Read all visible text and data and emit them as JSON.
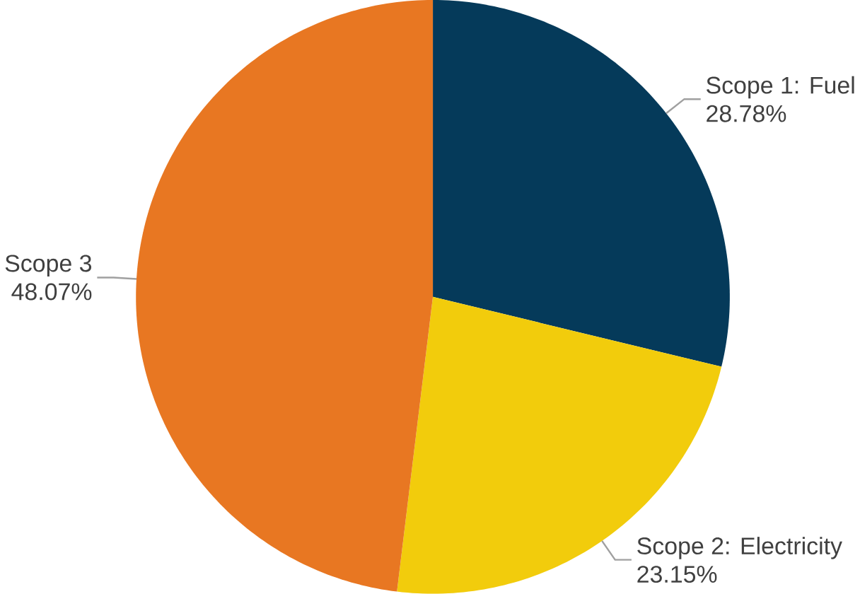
{
  "chart_data": {
    "type": "pie",
    "categories": [
      "Scope 1: Fuel",
      "Scope 2: Electricity",
      "Scope 3"
    ],
    "values": [
      28.78,
      23.15,
      48.07
    ],
    "value_labels": [
      "28.78%",
      "23.15%",
      "48.07%"
    ],
    "colors": [
      "#053a5a",
      "#f2cc0c",
      "#e87722"
    ]
  }
}
